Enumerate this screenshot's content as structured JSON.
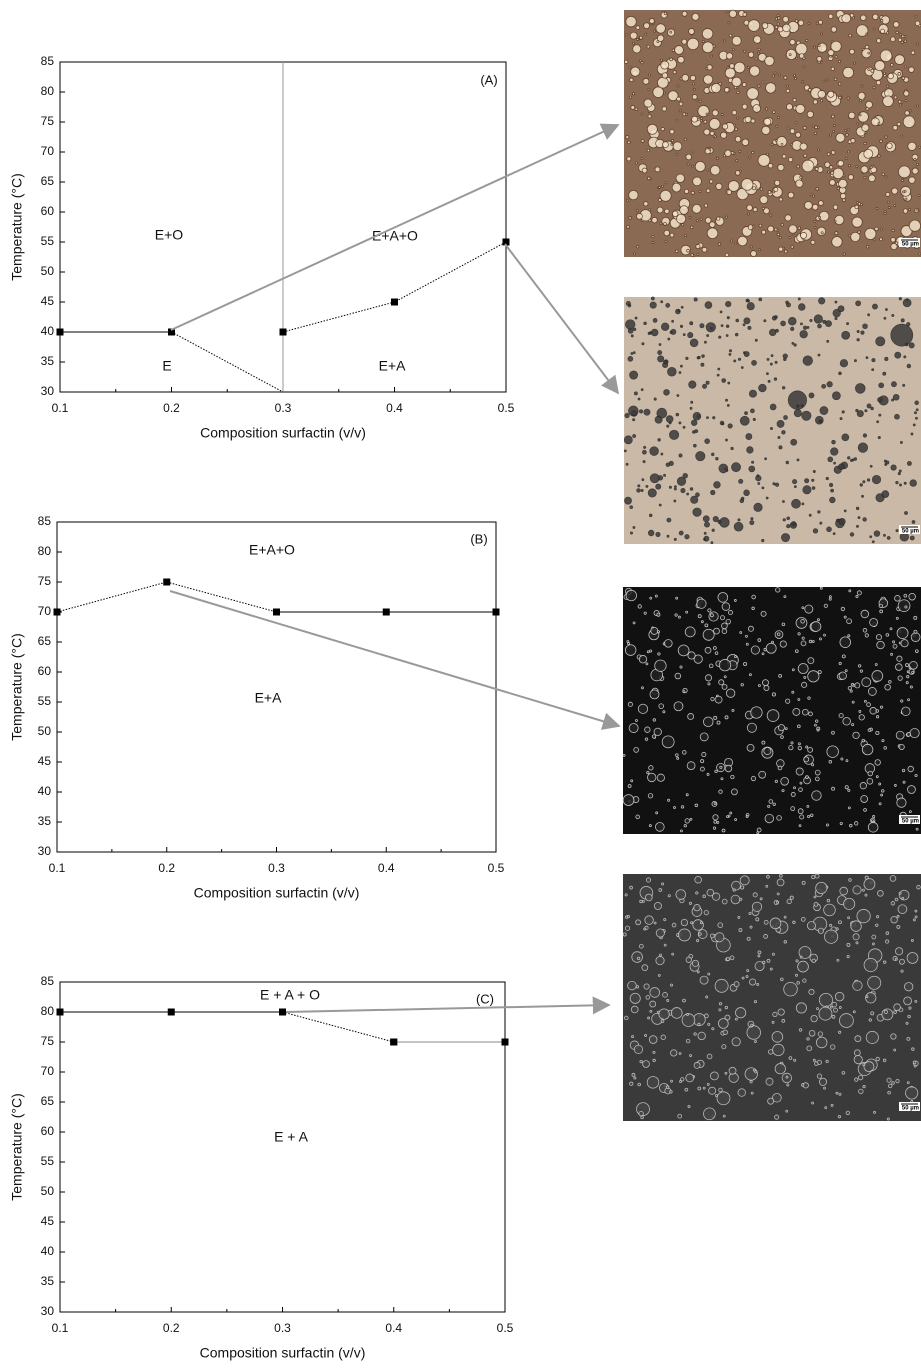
{
  "chart_data": [
    {
      "type": "line",
      "panel": "(A)",
      "x_label": "Composition surfactin (v/v)",
      "y_label": "Temperature (°C)",
      "xlim": [
        0.1,
        0.5
      ],
      "ylim": [
        30,
        85
      ],
      "xticks": [
        0.1,
        0.2,
        0.3,
        0.4,
        0.5
      ],
      "yticks": [
        30,
        35,
        40,
        45,
        50,
        55,
        60,
        65,
        70,
        75,
        80,
        85
      ],
      "series": [
        {
          "x": [
            0.1,
            0.2
          ],
          "values": [
            40,
            40
          ],
          "style": "solid",
          "color": "#000000"
        },
        {
          "x": [
            0.3,
            0.4,
            0.5
          ],
          "values": [
            40,
            45,
            55
          ],
          "style": "dotted",
          "color": "#000000"
        }
      ],
      "boundaries": [
        {
          "x": [
            0.3,
            0.3
          ],
          "values": [
            30,
            85
          ],
          "style": "solid",
          "color": "#999999"
        },
        {
          "x": [
            0.2,
            0.3
          ],
          "values": [
            40,
            30
          ],
          "style": "dotted",
          "color": "#000000"
        }
      ],
      "annotations": [
        "E+O",
        "E+A+O",
        "E",
        "E+A"
      ]
    },
    {
      "type": "line",
      "panel": "(B)",
      "x_label": "Composition surfactin (v/v)",
      "y_label": "Temperature (°C)",
      "xlim": [
        0.1,
        0.5
      ],
      "ylim": [
        30,
        85
      ],
      "xticks": [
        0.1,
        0.2,
        0.3,
        0.4,
        0.5
      ],
      "yticks": [
        30,
        35,
        40,
        45,
        50,
        55,
        60,
        65,
        70,
        75,
        80,
        85
      ],
      "series": [
        {
          "x": [
            0.1,
            0.2,
            0.3
          ],
          "values": [
            70,
            75,
            70
          ],
          "style": "dotted",
          "color": "#000000"
        },
        {
          "x": [
            0.3,
            0.4,
            0.5
          ],
          "values": [
            70,
            70,
            70
          ],
          "style": "solid",
          "color": "#000000"
        }
      ],
      "boundaries": [],
      "annotations": [
        "E+A+O",
        "E+A"
      ]
    },
    {
      "type": "line",
      "panel": "(C)",
      "x_label": "Composition surfactin (v/v)",
      "y_label": "Temperature (°C)",
      "xlim": [
        0.1,
        0.5
      ],
      "ylim": [
        30,
        85
      ],
      "xticks": [
        0.1,
        0.2,
        0.3,
        0.4,
        0.5
      ],
      "yticks": [
        30,
        35,
        40,
        45,
        50,
        55,
        60,
        65,
        70,
        75,
        80,
        85
      ],
      "series": [
        {
          "x": [
            0.1,
            0.2,
            0.3
          ],
          "values": [
            80,
            80,
            80
          ],
          "style": "solid",
          "color": "#000000"
        },
        {
          "x": [
            0.3,
            0.4
          ],
          "values": [
            80,
            75
          ],
          "style": "dotted",
          "color": "#000000"
        },
        {
          "x": [
            0.4,
            0.5
          ],
          "values": [
            75,
            75
          ],
          "style": "solid",
          "color": "#888888"
        }
      ],
      "boundaries": [],
      "annotations": [
        "E + A + O",
        "E + A"
      ]
    }
  ],
  "micrographs": [
    "50 µm",
    "50 µm",
    "50 µm",
    "50 µm"
  ]
}
